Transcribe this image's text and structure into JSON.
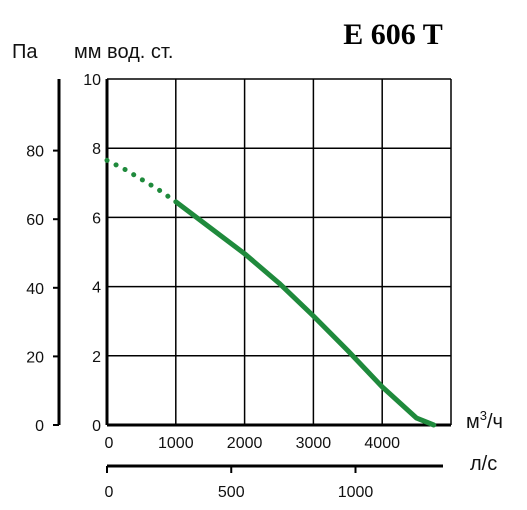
{
  "chart_data": {
    "type": "line",
    "title": "E 606 T",
    "y_unit_left": "Па",
    "y_unit_right": "мм вод. ст.",
    "x_unit": "м³/ч",
    "x_unit_main": "м",
    "x_unit_sup": "3",
    "x_unit_tail": "/ч",
    "x2_unit": "л/с",
    "xlim": [
      0,
      4700
    ],
    "ylim": [
      0,
      10
    ],
    "pa_lim": [
      0,
      98
    ],
    "ls_lim": [
      0,
      1300
    ],
    "x_ticks": [
      "0",
      "1000",
      "2000",
      "3000",
      "4000"
    ],
    "y_ticks": [
      "0",
      "2",
      "4",
      "6",
      "8",
      "10"
    ],
    "pa_ticks": [
      "0",
      "20",
      "40",
      "60",
      "80"
    ],
    "ls_ticks": [
      "0",
      "500",
      "1000"
    ],
    "grid": true,
    "line_color": "#1f8a3c",
    "series": [
      {
        "style": "dotted",
        "x": [
          0,
          250,
          500,
          750,
          1000
        ],
        "y": [
          7.65,
          7.4,
          7.1,
          6.8,
          6.45
        ]
      },
      {
        "style": "solid",
        "x": [
          1000,
          1500,
          2000,
          2500,
          3000,
          3500,
          4000,
          4500,
          4750
        ],
        "y": [
          6.45,
          5.7,
          4.95,
          4.1,
          3.15,
          2.15,
          1.1,
          0.2,
          0
        ]
      }
    ]
  }
}
